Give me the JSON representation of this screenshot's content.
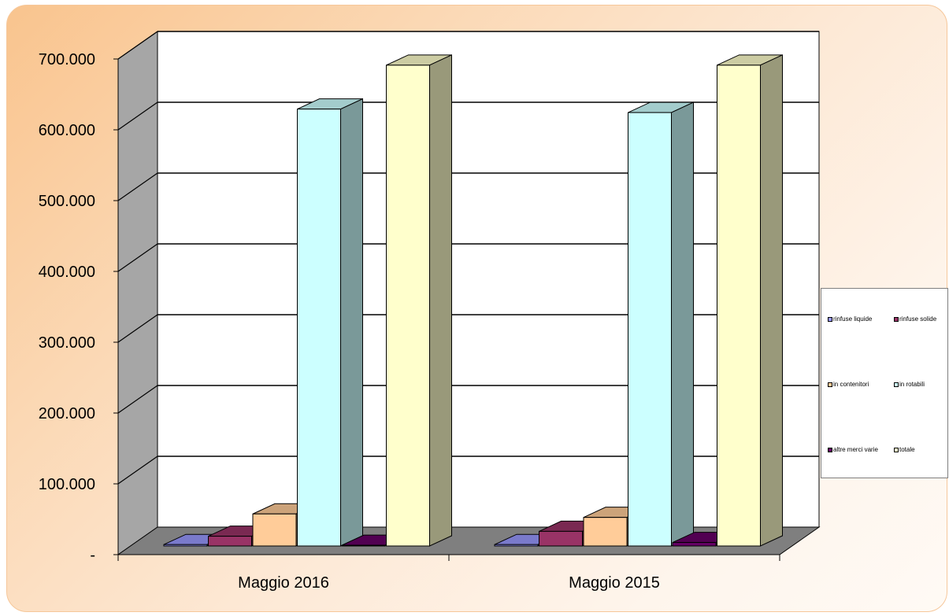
{
  "chart_data": {
    "type": "bar",
    "title": "",
    "xlabel": "",
    "ylabel": "",
    "ylim": [
      0,
      700000
    ],
    "y_ticks": [
      "-",
      "100.000",
      "200.000",
      "300.000",
      "400.000",
      "500.000",
      "600.000",
      "700.000"
    ],
    "categories": [
      "Maggio 2016",
      "Maggio 2015"
    ],
    "series": [
      {
        "name": "rinfuse liquide",
        "values": [
          2000,
          2000
        ],
        "color": "#9999ff"
      },
      {
        "name": "rinfuse solide",
        "values": [
          14000,
          21000
        ],
        "color": "#993366"
      },
      {
        "name": "in contenitori",
        "values": [
          46000,
          41000
        ],
        "color": "#ffcc99"
      },
      {
        "name": "in rotabili",
        "values": [
          627000,
          622000
        ],
        "color": "#ccffff"
      },
      {
        "name": "altre merci varie",
        "values": [
          1000,
          5000
        ],
        "color": "#660066"
      },
      {
        "name": "totale",
        "values": [
          690000,
          690000
        ],
        "color": "#ffffcc"
      }
    ],
    "grid": true,
    "legend_position": "right"
  }
}
